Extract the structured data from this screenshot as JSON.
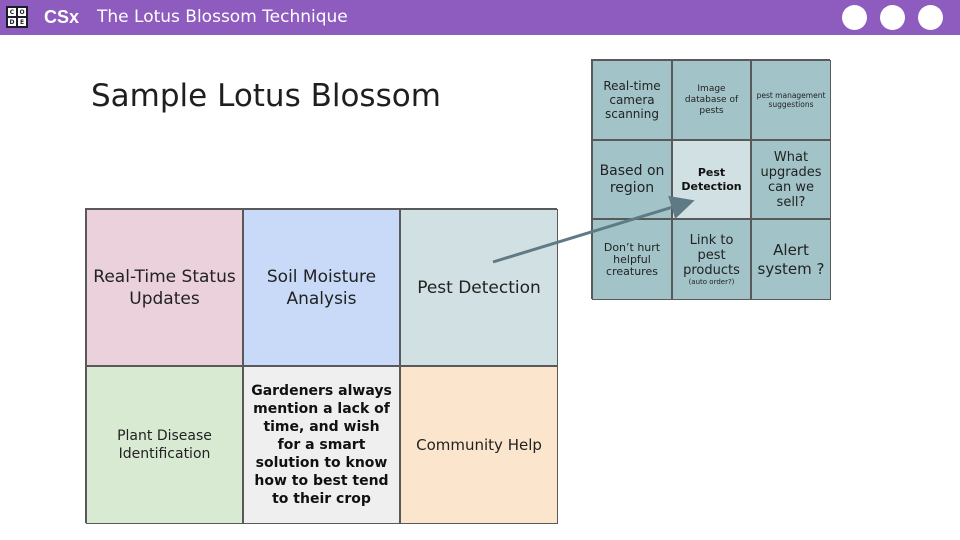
{
  "header": {
    "logo_letters": [
      "C",
      "O",
      "D",
      "E"
    ],
    "brand": "CSx",
    "title": "The Lotus Blossom Technique",
    "bar_color": "#8e5bbf",
    "dots": [
      "circle",
      "circle",
      "circle"
    ]
  },
  "slide": {
    "heading": "Sample Lotus Blossom"
  },
  "main_grid": {
    "cells": [
      {
        "text": "Real-Time Status Updates",
        "color": "#ead1dc"
      },
      {
        "text": "Soil Moisture Analysis",
        "color": "#c9daf8"
      },
      {
        "text": "Pest Detection",
        "color": "#d0e0e3"
      },
      {
        "text": "Plant Disease Identification",
        "color": "#d9ead3"
      },
      {
        "text": "Gardeners always mention a lack of time, and wish for a smart solution to know how to best tend to their crop",
        "color": "#efefef"
      },
      {
        "text": "Community Help",
        "color": "#fce5cd"
      }
    ]
  },
  "detail_grid": {
    "color": "#a2c4c9",
    "center_color": "#d0e0e3",
    "cells": [
      {
        "text": "Real-time camera scanning"
      },
      {
        "text": "Image database of pests"
      },
      {
        "text": "pest management suggestions"
      },
      {
        "text": "Based on region"
      },
      {
        "text": "Pest Detection"
      },
      {
        "text": "What upgrades can we sell?"
      },
      {
        "text": "Don’t hurt helpful creatures"
      },
      {
        "text": "Link to pest products",
        "note": "(auto order?)"
      },
      {
        "text": "Alert system ?"
      }
    ]
  },
  "arrow": {
    "color": "#5f7a84",
    "from": "Pest Detection",
    "to": "Pest Detection"
  }
}
